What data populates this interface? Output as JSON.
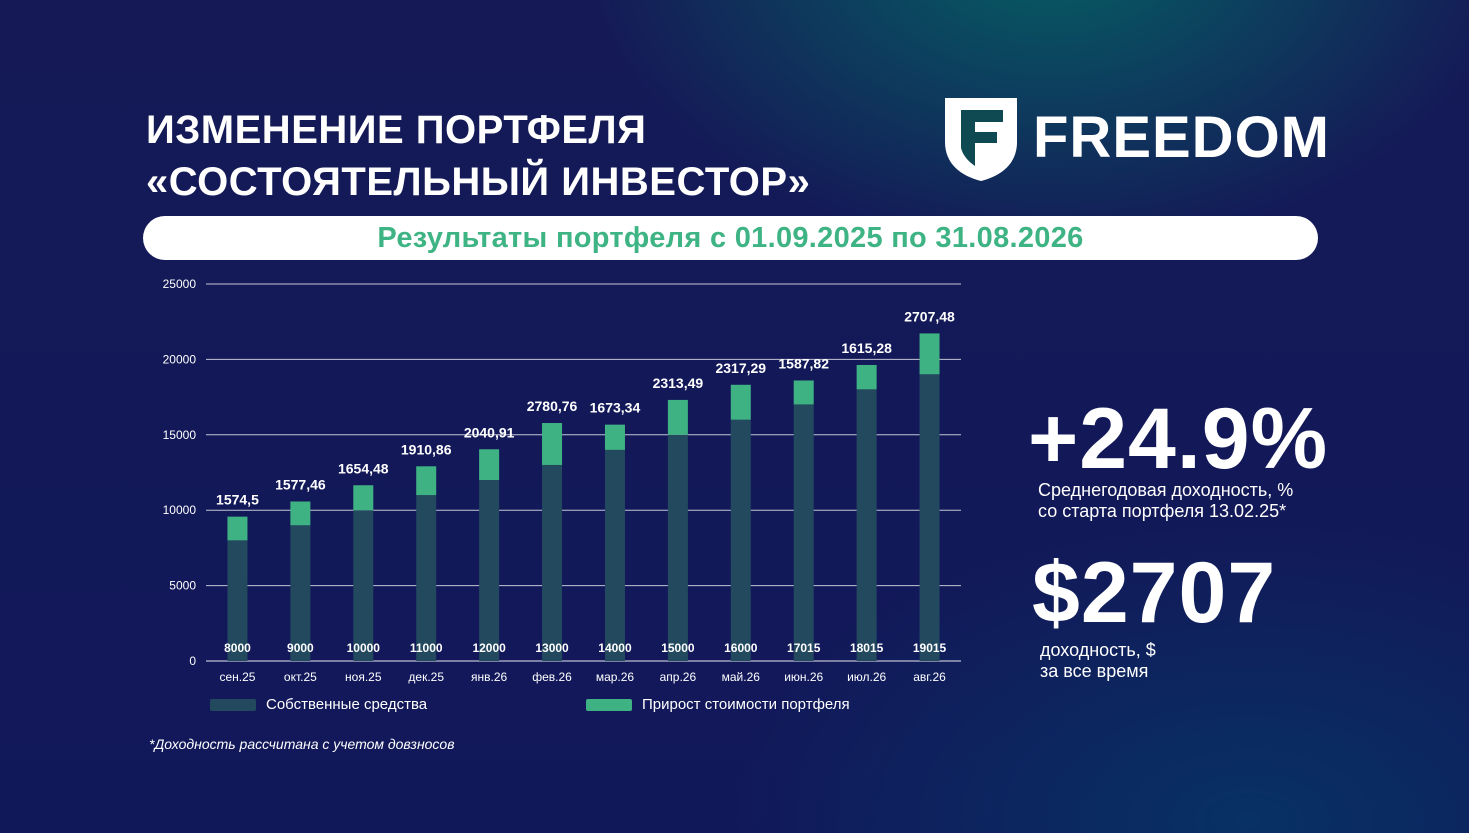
{
  "title_lines": [
    "ИЗМЕНЕНИЕ ПОРТФЕЛЯ",
    "«СОСТОЯТЕЛЬНЫЙ ИНВЕСТОР»"
  ],
  "logo": {
    "text": "FREEDOM",
    "icon": "freedom-shield-logo"
  },
  "banner": {
    "text": "Результаты портфеля с 01.09.2025 по 31.08.2026"
  },
  "chart_data": {
    "type": "bar",
    "stacked": true,
    "categories": [
      "сен.25",
      "окт.25",
      "ноя.25",
      "дек.25",
      "янв.26",
      "фев.26",
      "мар.26",
      "апр.26",
      "май.26",
      "июн.26",
      "июл.26",
      "авг.26"
    ],
    "series": [
      {
        "name": "Собственные средства",
        "color": "#23495f",
        "values": [
          8000,
          9000,
          10000,
          11000,
          12000,
          13000,
          14000,
          15000,
          16000,
          17015,
          18015,
          19015
        ],
        "labels": [
          "8000",
          "9000",
          "10000",
          "11000",
          "12000",
          "13000",
          "14000",
          "15000",
          "16000",
          "17015",
          "18015",
          "19015"
        ]
      },
      {
        "name": "Прирост стоимости портфеля",
        "color": "#3fb283",
        "values": [
          1574.5,
          1577.46,
          1654.48,
          1910.86,
          2040.91,
          2780.76,
          1673.34,
          2313.49,
          2317.29,
          1587.82,
          1615.28,
          2707.48
        ],
        "labels": [
          "1574,5",
          "1577,46",
          "1654,48",
          "1910,86",
          "2040,91",
          "2780,76",
          "1673,34",
          "2313,49",
          "2317,29",
          "1587,82",
          "1615,28",
          "2707,48"
        ]
      }
    ],
    "y_ticks": [
      "0",
      "5000",
      "10000",
      "15000",
      "20000",
      "25000"
    ],
    "ylim": [
      0,
      25000
    ],
    "grid": true,
    "legend": "bottom"
  },
  "footnote": "*Доходность рассчитана с учетом довзносов",
  "kpi1": {
    "value": "+24.9%",
    "label_lines": [
      "Среднегодовая доходность, %",
      "со старта портфеля 13.02.25*"
    ]
  },
  "kpi2": {
    "value": "$2707",
    "label_lines": [
      "доходность, $",
      "за все время"
    ]
  },
  "colors": {
    "accent": "#3eb383",
    "own_funds": "#23495f",
    "growth": "#3fb283"
  }
}
